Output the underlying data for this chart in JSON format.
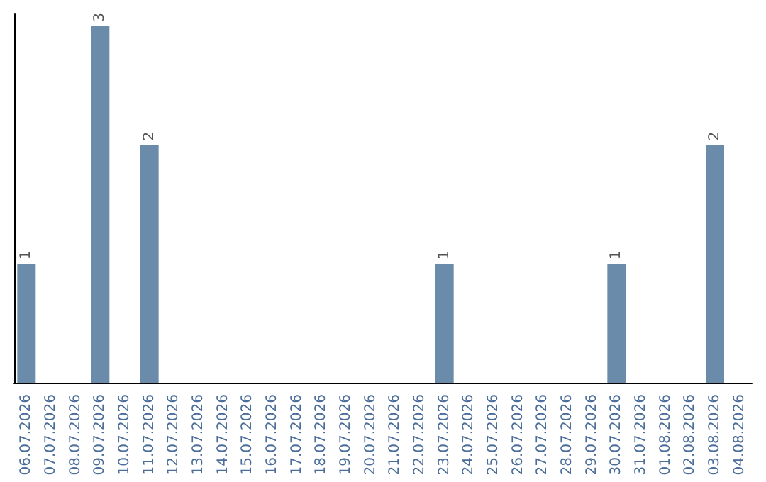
{
  "chart_data": {
    "type": "bar",
    "categories": [
      "06.07.2026",
      "07.07.2026",
      "08.07.2026",
      "09.07.2026",
      "10.07.2026",
      "11.07.2026",
      "12.07.2026",
      "13.07.2026",
      "14.07.2026",
      "15.07.2026",
      "16.07.2026",
      "17.07.2026",
      "18.07.2026",
      "19.07.2026",
      "20.07.2026",
      "21.07.2026",
      "22.07.2026",
      "23.07.2026",
      "24.07.2026",
      "25.07.2026",
      "26.07.2026",
      "27.07.2026",
      "28.07.2026",
      "29.07.2026",
      "30.07.2026",
      "31.07.2026",
      "01.08.2026",
      "02.08.2026",
      "03.08.2026",
      "04.08.2026"
    ],
    "values": [
      1,
      null,
      null,
      3,
      null,
      2,
      null,
      null,
      null,
      null,
      null,
      null,
      null,
      null,
      null,
      null,
      null,
      1,
      null,
      null,
      null,
      null,
      null,
      null,
      1,
      null,
      null,
      null,
      2,
      null
    ],
    "color": "#6a8caa",
    "ylim": [
      0,
      3.1
    ],
    "data_labels": true,
    "tick_labels": "x"
  }
}
